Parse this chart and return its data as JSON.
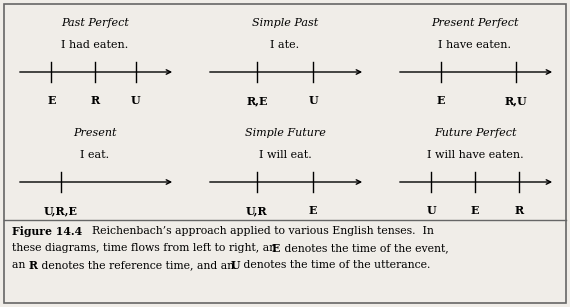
{
  "bg_color": "#f0ede8",
  "border_color": "#666666",
  "diagrams": [
    {
      "title": "Past Perfect",
      "sentence": "I had eaten.",
      "col": 0,
      "row": 0,
      "ticks": [
        0.22,
        0.5,
        0.76
      ],
      "labels": [
        "E",
        "R",
        "U"
      ]
    },
    {
      "title": "Simple Past",
      "sentence": "I ate.",
      "col": 1,
      "row": 0,
      "ticks": [
        0.32,
        0.68
      ],
      "labels": [
        "R,E",
        "U"
      ]
    },
    {
      "title": "Present Perfect",
      "sentence": "I have eaten.",
      "col": 2,
      "row": 0,
      "ticks": [
        0.28,
        0.76
      ],
      "labels": [
        "E",
        "R,U"
      ]
    },
    {
      "title": "Present",
      "sentence": "I eat.",
      "col": 0,
      "row": 1,
      "ticks": [
        0.28
      ],
      "labels": [
        "U,R,E"
      ]
    },
    {
      "title": "Simple Future",
      "sentence": "I will eat.",
      "col": 1,
      "row": 1,
      "ticks": [
        0.32,
        0.68
      ],
      "labels": [
        "U,R",
        "E"
      ]
    },
    {
      "title": "Future Perfect",
      "sentence": "I will have eaten.",
      "col": 2,
      "row": 1,
      "ticks": [
        0.22,
        0.5,
        0.78
      ],
      "labels": [
        "U",
        "E",
        "R"
      ]
    }
  ]
}
